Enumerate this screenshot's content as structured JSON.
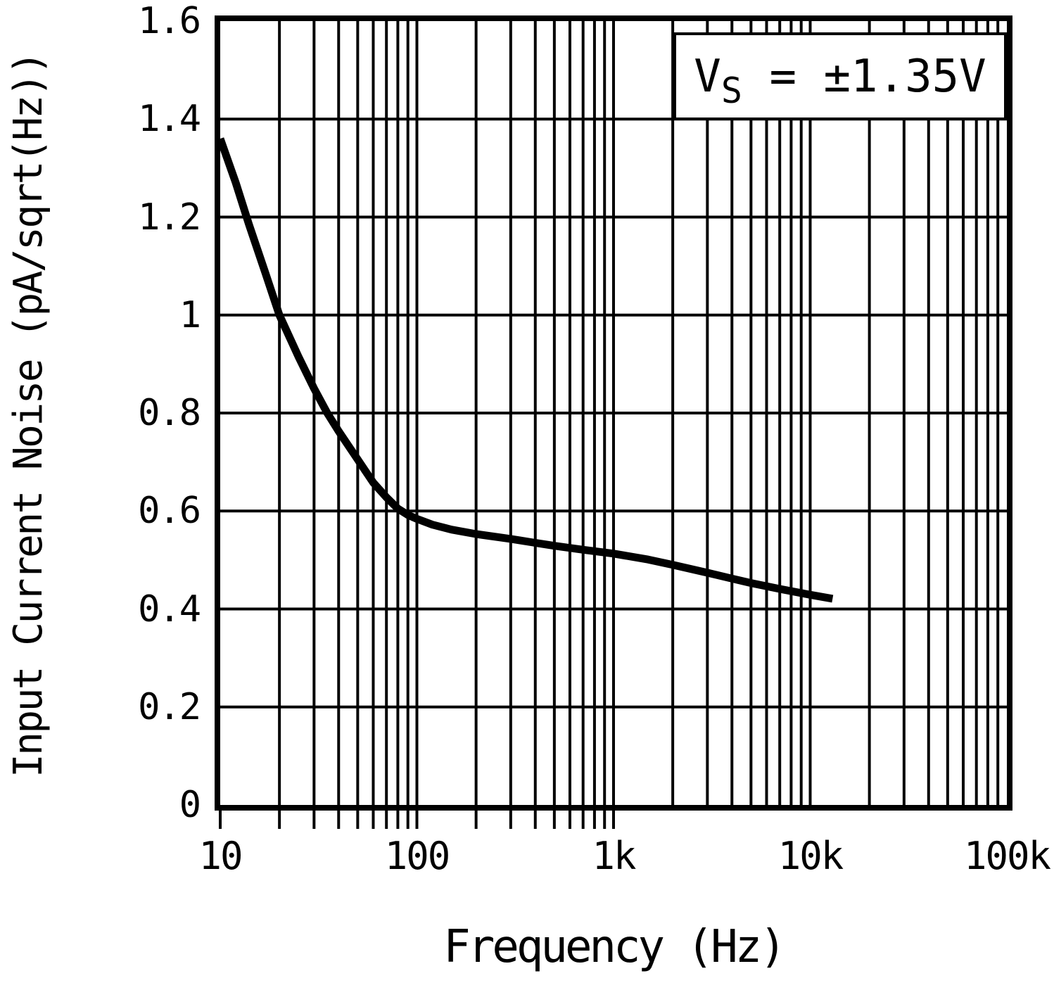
{
  "page": {
    "background": "#ffffff",
    "ink": "#000000"
  },
  "annotation": {
    "variable": "V",
    "subscript": "S",
    "equals": " = ",
    "value": "±1.35V",
    "full_text": "VS = ±1.35V"
  },
  "chart_data": {
    "type": "line",
    "title": "",
    "xlabel": "Frequency (Hz)",
    "ylabel": "Input Current Noise (pA/sqrt(Hz))",
    "x_scale": "log",
    "y_scale": "linear",
    "x_range": [
      10,
      100000
    ],
    "y_range": [
      0,
      1.6
    ],
    "x_ticks": [
      {
        "value": 10,
        "label": "10"
      },
      {
        "value": 100,
        "label": "100"
      },
      {
        "value": 1000,
        "label": "1k"
      },
      {
        "value": 10000,
        "label": "10k"
      },
      {
        "value": 100000,
        "label": "100k"
      }
    ],
    "y_ticks": [
      {
        "value": 0,
        "label": "0"
      },
      {
        "value": 0.2,
        "label": "0.2"
      },
      {
        "value": 0.4,
        "label": "0.4"
      },
      {
        "value": 0.6,
        "label": "0.6"
      },
      {
        "value": 0.8,
        "label": "0.8"
      },
      {
        "value": 1,
        "label": "1"
      },
      {
        "value": 1.2,
        "label": "1.2"
      },
      {
        "value": 1.4,
        "label": "1.4"
      },
      {
        "value": 1.6,
        "label": "1.6"
      }
    ],
    "grid": {
      "vertical": "log minor lines 2-9 each decade plus decade lines",
      "horizontal": "major lines every 0.2",
      "below_axis_tick_stub_max_freq": 1000
    },
    "legend_position": "annotation box top-right",
    "series": [
      {
        "name": "Input current noise, VS = ±1.35V",
        "points": [
          [
            10,
            1.36
          ],
          [
            12,
            1.27
          ],
          [
            14,
            1.185
          ],
          [
            17,
            1.085
          ],
          [
            20,
            1.0
          ],
          [
            25,
            0.915
          ],
          [
            30,
            0.85
          ],
          [
            35,
            0.8
          ],
          [
            40,
            0.763
          ],
          [
            50,
            0.705
          ],
          [
            60,
            0.658
          ],
          [
            70,
            0.628
          ],
          [
            80,
            0.605
          ],
          [
            90,
            0.592
          ],
          [
            100,
            0.584
          ],
          [
            120,
            0.572
          ],
          [
            150,
            0.562
          ],
          [
            200,
            0.553
          ],
          [
            300,
            0.543
          ],
          [
            400,
            0.535
          ],
          [
            500,
            0.529
          ],
          [
            700,
            0.521
          ],
          [
            1000,
            0.513
          ],
          [
            1500,
            0.501
          ],
          [
            2000,
            0.49
          ],
          [
            3000,
            0.474
          ],
          [
            4000,
            0.462
          ],
          [
            5000,
            0.453
          ],
          [
            7000,
            0.441
          ],
          [
            10000,
            0.429
          ],
          [
            13000,
            0.421
          ]
        ]
      }
    ]
  }
}
